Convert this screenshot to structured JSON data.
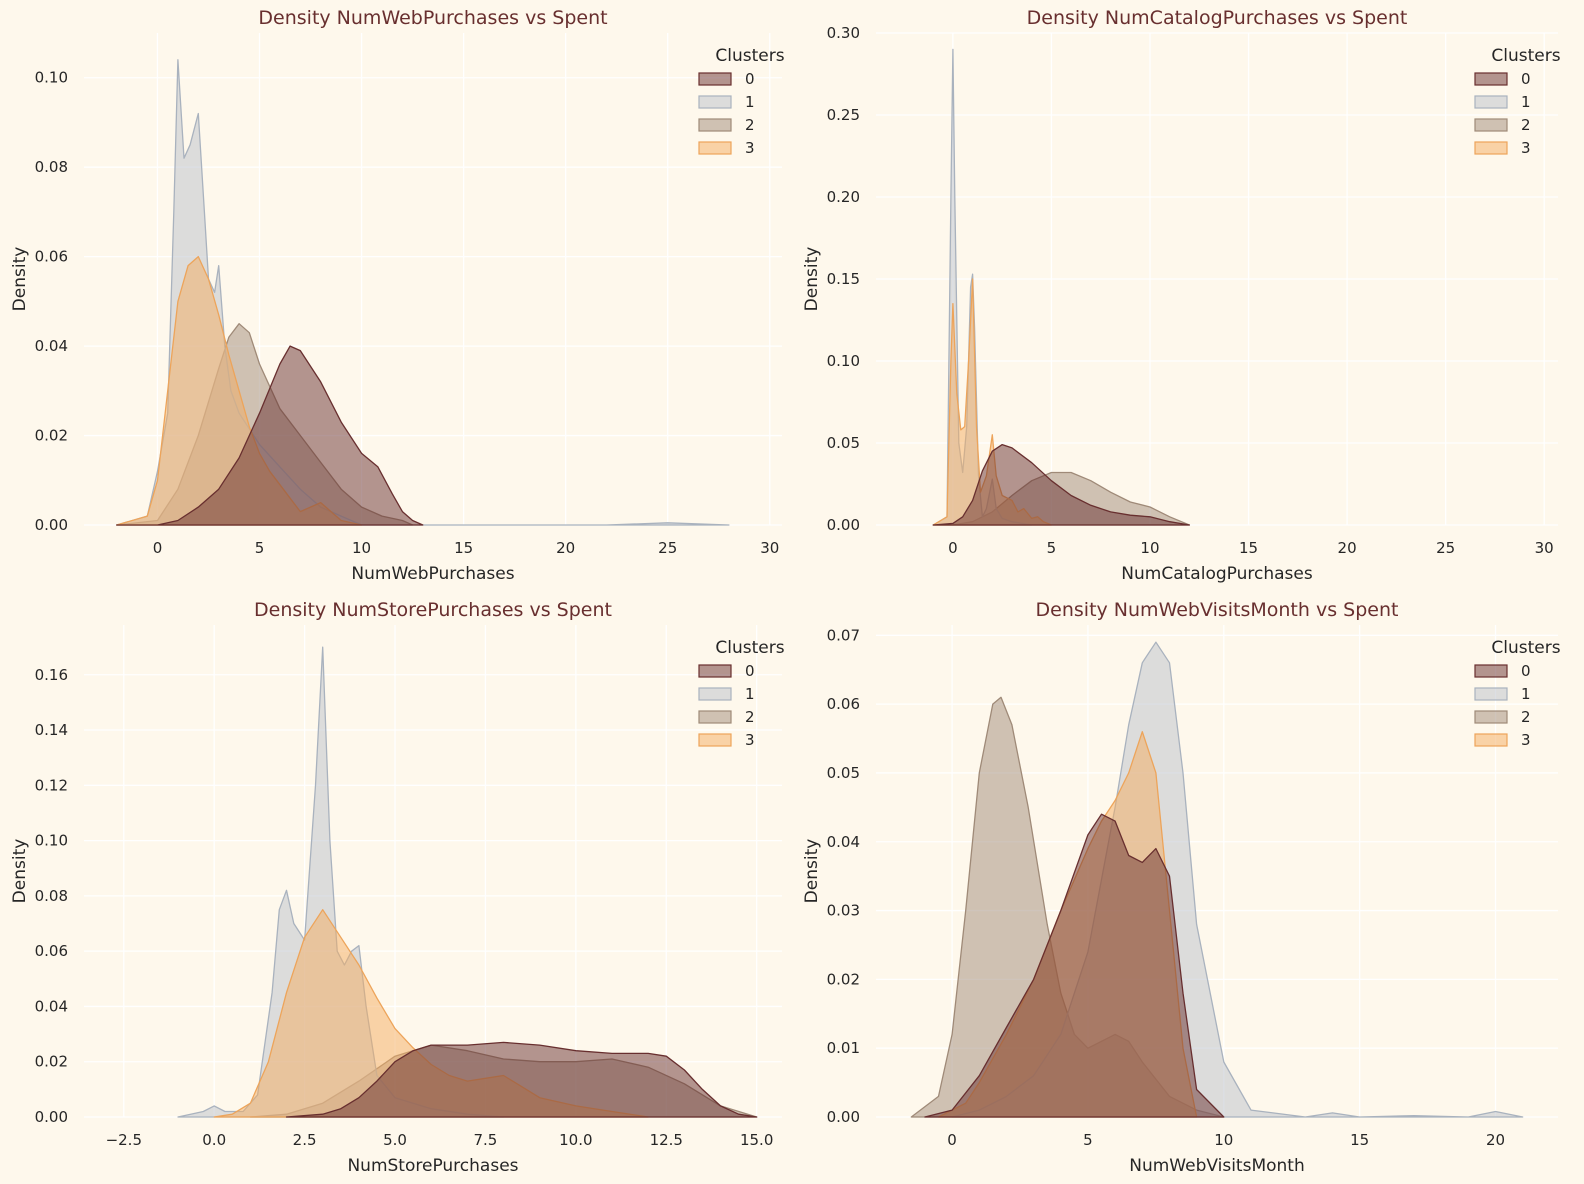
{
  "figure": {
    "background": "#FEF8EC",
    "text_color": "#262626",
    "title_color": "#682F2F",
    "grid_color": "#FFFFFF"
  },
  "legend": {
    "title": "Clusters",
    "labels": [
      "0",
      "1",
      "2",
      "3"
    ],
    "placement": "top-right"
  },
  "palette": {
    "0": {
      "fill": "#682F2F",
      "line": "#682F2F"
    },
    "1": {
      "fill": "#B9C0C9",
      "line": "#A9B2BE"
    },
    "2": {
      "fill": "#9F8A78",
      "line": "#9F8A78"
    },
    "3": {
      "fill": "#F3AB60",
      "line": "#EDA45A"
    }
  },
  "chart_data": [
    {
      "type": "area",
      "title": "Density NumWebPurchases vs Spent",
      "xlabel": "NumWebPurchases",
      "ylabel": "Density",
      "xlim": [
        -3.6,
        30.6
      ],
      "ylim": [
        0,
        0.11
      ],
      "xticks": [
        "0",
        "5",
        "10",
        "15",
        "20",
        "25",
        "30"
      ],
      "xtick_values": [
        0,
        5,
        10,
        15,
        20,
        25,
        30
      ],
      "yticks": [
        "0.00",
        "0.02",
        "0.04",
        "0.06",
        "0.08",
        "0.10"
      ],
      "ytick_values": [
        0,
        0.02,
        0.04,
        0.06,
        0.08,
        0.1
      ],
      "grid": true,
      "series": [
        {
          "name": "0",
          "x": [
            -2,
            0,
            1,
            2,
            3,
            4,
            5,
            6,
            6.5,
            7,
            8,
            9,
            10,
            10.8,
            11.5,
            12,
            12.5,
            13
          ],
          "y": [
            0,
            0,
            0.001,
            0.004,
            0.008,
            0.015,
            0.025,
            0.036,
            0.04,
            0.039,
            0.032,
            0.023,
            0.016,
            0.013,
            0.007,
            0.003,
            0.001,
            0
          ]
        },
        {
          "name": "1",
          "x": [
            -2,
            -0.5,
            0,
            0.5,
            0.8,
            1.0,
            1.3,
            1.6,
            2.0,
            2.3,
            2.5,
            2.8,
            3.0,
            3.3,
            3.6,
            4,
            5,
            6,
            7,
            8,
            9,
            10,
            22,
            25,
            28
          ],
          "y": [
            0,
            0.002,
            0.012,
            0.025,
            0.07,
            0.104,
            0.082,
            0.085,
            0.092,
            0.07,
            0.055,
            0.052,
            0.058,
            0.04,
            0.03,
            0.025,
            0.018,
            0.013,
            0.008,
            0.004,
            0.002,
            0,
            0,
            0.0005,
            0
          ]
        },
        {
          "name": "2",
          "x": [
            -2,
            0,
            1,
            2,
            3,
            3.5,
            4,
            4.5,
            5,
            6,
            7,
            8,
            9,
            10,
            11,
            12,
            12.5
          ],
          "y": [
            0,
            0.001,
            0.008,
            0.02,
            0.035,
            0.042,
            0.045,
            0.043,
            0.036,
            0.026,
            0.02,
            0.014,
            0.008,
            0.004,
            0.002,
            0.001,
            0
          ]
        },
        {
          "name": "3",
          "x": [
            -2,
            -0.5,
            0,
            0.5,
            1,
            1.5,
            2,
            2.5,
            3,
            3.5,
            4,
            4.5,
            5,
            5.5,
            6,
            6.5,
            7,
            7.5,
            8,
            8.5,
            9,
            10
          ],
          "y": [
            0,
            0.002,
            0.01,
            0.03,
            0.05,
            0.058,
            0.06,
            0.055,
            0.047,
            0.038,
            0.03,
            0.022,
            0.016,
            0.012,
            0.009,
            0.006,
            0.003,
            0.004,
            0.005,
            0.003,
            0.001,
            0
          ]
        }
      ]
    },
    {
      "type": "area",
      "title": "Density NumCatalogPurchases vs Spent",
      "xlabel": "NumCatalogPurchases",
      "ylabel": "Density",
      "xlim": [
        -3.9,
        30.7
      ],
      "ylim": [
        0,
        0.3
      ],
      "xticks": [
        "0",
        "5",
        "10",
        "15",
        "20",
        "25",
        "30"
      ],
      "xtick_values": [
        0,
        5,
        10,
        15,
        20,
        25,
        30
      ],
      "yticks": [
        "0.00",
        "0.05",
        "0.10",
        "0.15",
        "0.20",
        "0.25",
        "0.30"
      ],
      "ytick_values": [
        0,
        0.05,
        0.1,
        0.15,
        0.2,
        0.25,
        0.3
      ],
      "grid": true,
      "series": [
        {
          "name": "0",
          "x": [
            -1,
            0,
            0.5,
            1,
            1.5,
            2,
            2.5,
            3,
            4,
            5,
            6,
            7,
            8,
            9,
            10,
            11,
            12
          ],
          "y": [
            0,
            0.001,
            0.005,
            0.015,
            0.033,
            0.045,
            0.049,
            0.047,
            0.038,
            0.027,
            0.018,
            0.012,
            0.008,
            0.006,
            0.005,
            0.002,
            0
          ]
        },
        {
          "name": "1",
          "x": [
            -1,
            -0.3,
            -0.1,
            0,
            0.1,
            0.3,
            0.5,
            0.7,
            0.9,
            1.0,
            1.1,
            1.3,
            1.5,
            1.7,
            2.0,
            2.2,
            2.5,
            3,
            3.5,
            4
          ],
          "y": [
            0,
            0.005,
            0.2,
            0.29,
            0.2,
            0.05,
            0.032,
            0.06,
            0.145,
            0.153,
            0.12,
            0.03,
            0.005,
            0.01,
            0.028,
            0.01,
            0.004,
            0.002,
            0.001,
            0
          ]
        },
        {
          "name": "2",
          "x": [
            -1,
            0,
            1,
            2,
            3,
            4,
            5,
            6,
            7,
            8,
            9,
            10,
            11,
            12
          ],
          "y": [
            0,
            0,
            0.002,
            0.008,
            0.018,
            0.027,
            0.032,
            0.032,
            0.027,
            0.02,
            0.014,
            0.011,
            0.005,
            0
          ]
        },
        {
          "name": "3",
          "x": [
            -1,
            -0.3,
            -0.1,
            0,
            0.2,
            0.4,
            0.6,
            0.8,
            1.0,
            1.2,
            1.4,
            1.7,
            2.0,
            2.2,
            2.5,
            3.0,
            3.3,
            3.6,
            4.0,
            4.3,
            4.6,
            5.0
          ],
          "y": [
            0,
            0.005,
            0.1,
            0.135,
            0.08,
            0.058,
            0.06,
            0.1,
            0.15,
            0.06,
            0.02,
            0.03,
            0.055,
            0.03,
            0.018,
            0.015,
            0.008,
            0.01,
            0.004,
            0.005,
            0.002,
            0
          ]
        }
      ]
    },
    {
      "type": "area",
      "title": "Density NumStorePurchases vs Spent",
      "xlabel": "NumStorePurchases",
      "ylabel": "Density",
      "xlim": [
        -3.6,
        15.7
      ],
      "ylim": [
        0,
        0.178
      ],
      "xticks": [
        "−2.5",
        "0.0",
        "2.5",
        "5.0",
        "7.5",
        "10.0",
        "12.5",
        "15.0"
      ],
      "xtick_values": [
        -2.5,
        0,
        2.5,
        5,
        7.5,
        10,
        12.5,
        15
      ],
      "yticks": [
        "0.00",
        "0.02",
        "0.04",
        "0.06",
        "0.08",
        "0.10",
        "0.12",
        "0.14",
        "0.16"
      ],
      "ytick_values": [
        0,
        0.02,
        0.04,
        0.06,
        0.08,
        0.1,
        0.12,
        0.14,
        0.16
      ],
      "grid": true,
      "series": [
        {
          "name": "0",
          "x": [
            2,
            3,
            3.5,
            4,
            4.5,
            5,
            5.5,
            6,
            7,
            8,
            9,
            10,
            11,
            12,
            12.5,
            13,
            13.5,
            14,
            14.5,
            15
          ],
          "y": [
            0,
            0.001,
            0.003,
            0.007,
            0.013,
            0.02,
            0.024,
            0.026,
            0.026,
            0.027,
            0.026,
            0.024,
            0.023,
            0.023,
            0.022,
            0.017,
            0.01,
            0.004,
            0.001,
            0
          ]
        },
        {
          "name": "1",
          "x": [
            -1,
            -0.3,
            0,
            0.3,
            0.8,
            1.2,
            1.6,
            1.8,
            2.0,
            2.2,
            2.5,
            2.8,
            3.0,
            3.2,
            3.4,
            3.6,
            3.8,
            4.0,
            4.2,
            4.5,
            5.0,
            5.5,
            6,
            7,
            8
          ],
          "y": [
            0,
            0.002,
            0.004,
            0.002,
            0.002,
            0.008,
            0.045,
            0.075,
            0.082,
            0.07,
            0.064,
            0.12,
            0.17,
            0.1,
            0.06,
            0.055,
            0.06,
            0.062,
            0.04,
            0.015,
            0.007,
            0.005,
            0.003,
            0.001,
            0
          ]
        },
        {
          "name": "2",
          "x": [
            1,
            2,
            3,
            4,
            5,
            6,
            7,
            8,
            9,
            10,
            11,
            12,
            13,
            14,
            15
          ],
          "y": [
            0,
            0.001,
            0.005,
            0.013,
            0.022,
            0.026,
            0.024,
            0.021,
            0.02,
            0.02,
            0.021,
            0.018,
            0.012,
            0.004,
            0
          ]
        },
        {
          "name": "3",
          "x": [
            0,
            0.5,
            1,
            1.5,
            2,
            2.5,
            3,
            3.5,
            4,
            4.5,
            5,
            5.5,
            6,
            6.5,
            7,
            7.5,
            8,
            8.5,
            9,
            10,
            11,
            12
          ],
          "y": [
            0,
            0.001,
            0.005,
            0.02,
            0.045,
            0.065,
            0.075,
            0.065,
            0.055,
            0.043,
            0.032,
            0.025,
            0.019,
            0.015,
            0.013,
            0.014,
            0.015,
            0.011,
            0.007,
            0.004,
            0.002,
            0
          ]
        }
      ]
    },
    {
      "type": "area",
      "title": "Density NumWebVisitsMonth vs Spent",
      "xlabel": "NumWebVisitsMonth",
      "ylabel": "Density",
      "xlim": [
        -2.8,
        22.3
      ],
      "ylim": [
        0,
        0.0715
      ],
      "xticks": [
        "0",
        "5",
        "10",
        "15",
        "20"
      ],
      "xtick_values": [
        0,
        5,
        10,
        15,
        20
      ],
      "yticks": [
        "0.00",
        "0.01",
        "0.02",
        "0.03",
        "0.04",
        "0.05",
        "0.06",
        "0.07"
      ],
      "ytick_values": [
        0,
        0.01,
        0.02,
        0.03,
        0.04,
        0.05,
        0.06,
        0.07
      ],
      "grid": true,
      "series": [
        {
          "name": "0",
          "x": [
            -1,
            0,
            1,
            2,
            3,
            4,
            5,
            5.5,
            6,
            6.5,
            7,
            7.5,
            8,
            8.5,
            9,
            10
          ],
          "y": [
            0,
            0.001,
            0.006,
            0.013,
            0.02,
            0.03,
            0.041,
            0.044,
            0.043,
            0.038,
            0.037,
            0.039,
            0.035,
            0.018,
            0.004,
            0
          ]
        },
        {
          "name": "1",
          "x": [
            0,
            1,
            2,
            3,
            4,
            5,
            6,
            6.5,
            7,
            7.5,
            8,
            8.5,
            9,
            10,
            11,
            13,
            14,
            15,
            17,
            19,
            20,
            21
          ],
          "y": [
            0,
            0.001,
            0.003,
            0.006,
            0.012,
            0.024,
            0.045,
            0.057,
            0.066,
            0.069,
            0.066,
            0.05,
            0.028,
            0.008,
            0.001,
            0,
            0.0006,
            0,
            0.0002,
            0,
            0.0008,
            0
          ]
        },
        {
          "name": "2",
          "x": [
            -1.5,
            -0.5,
            0,
            0.5,
            1,
            1.5,
            1.8,
            2.2,
            2.8,
            3.5,
            4,
            4.5,
            5,
            5.5,
            6,
            6.5,
            7,
            8,
            9,
            10
          ],
          "y": [
            0,
            0.003,
            0.012,
            0.03,
            0.05,
            0.06,
            0.061,
            0.057,
            0.045,
            0.028,
            0.018,
            0.012,
            0.01,
            0.011,
            0.012,
            0.011,
            0.008,
            0.003,
            0.001,
            0
          ]
        },
        {
          "name": "3",
          "x": [
            -0.5,
            0.5,
            1,
            2,
            3,
            4,
            5,
            5.5,
            6,
            6.5,
            7,
            7.5,
            8,
            8.5,
            9
          ],
          "y": [
            0,
            0.002,
            0.005,
            0.012,
            0.02,
            0.03,
            0.039,
            0.043,
            0.046,
            0.05,
            0.056,
            0.05,
            0.03,
            0.01,
            0
          ]
        }
      ]
    }
  ]
}
